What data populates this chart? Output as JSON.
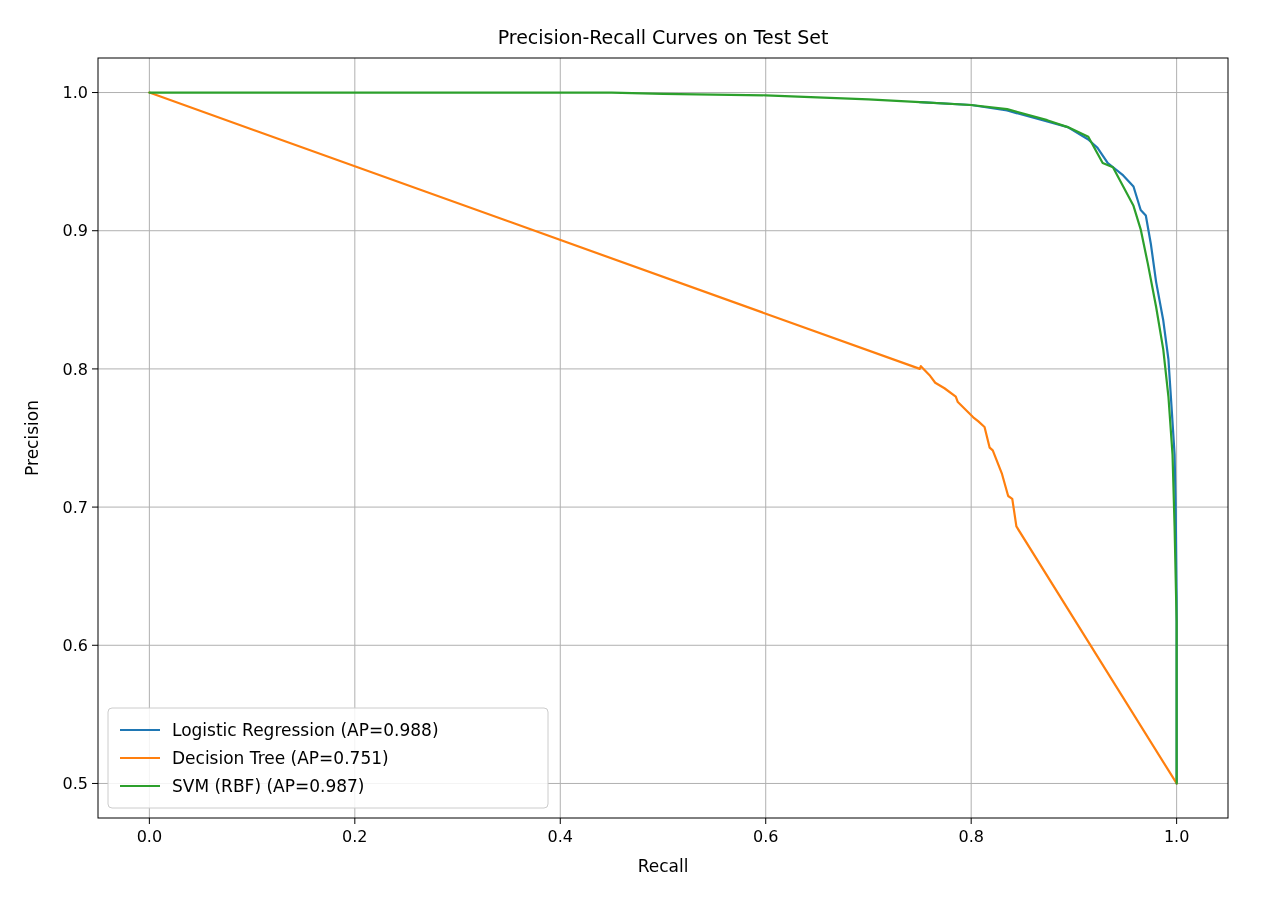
{
  "chart_data": {
    "type": "line",
    "title": "Precision-Recall Curves on Test Set",
    "xlabel": "Recall",
    "ylabel": "Precision",
    "xlim": [
      -0.05,
      1.05
    ],
    "ylim": [
      0.475,
      1.025
    ],
    "xticks": [
      {
        "value": 0,
        "label": "0.0"
      },
      0.2,
      0.4,
      0.6,
      0.8,
      {
        "value": 1,
        "label": "1.0"
      }
    ],
    "yticks": [
      0.5,
      0.6,
      0.7,
      0.8,
      0.9,
      {
        "value": 1,
        "label": "1.0"
      }
    ],
    "grid": true,
    "legend": "bottom left",
    "series": [
      {
        "name": "Logistic Regression (AP=0.988)",
        "color": "#1f77b4",
        "x": [
          0.75,
          0.8,
          0.835,
          0.874,
          0.894,
          0.914,
          0.923,
          0.933,
          0.948,
          0.958,
          0.965,
          0.97,
          0.975,
          0.98,
          0.987,
          0.992,
          0.995,
          0.998,
          0.999,
          1,
          1
        ],
        "values": [
          0.993,
          0.991,
          0.987,
          0.979,
          0.975,
          0.966,
          0.96,
          0.949,
          0.94,
          0.932,
          0.915,
          0.911,
          0.89,
          0.863,
          0.835,
          0.807,
          0.773,
          0.738,
          0.703,
          0.634,
          0.5
        ]
      },
      {
        "name": "Decision Tree (AP=0.751)",
        "color": "#ff7f0e",
        "x": [
          0,
          0.75,
          0.751,
          0.76,
          0.765,
          0.774,
          0.785,
          0.787,
          0.802,
          0.807,
          0.813,
          0.818,
          0.821,
          0.83,
          0.836,
          0.84,
          0.844,
          1
        ],
        "values": [
          1,
          0.8,
          0.802,
          0.795,
          0.79,
          0.786,
          0.78,
          0.776,
          0.765,
          0.762,
          0.758,
          0.743,
          0.741,
          0.724,
          0.708,
          0.706,
          0.686,
          0.5
        ]
      },
      {
        "name": "SVM (RBF) (AP=0.987)",
        "color": "#2ca02c",
        "x": [
          0,
          0.45,
          0.5,
          0.6,
          0.7,
          0.75,
          0.8,
          0.835,
          0.874,
          0.894,
          0.914,
          0.928,
          0.938,
          0.948,
          0.958,
          0.965,
          0.972,
          0.98,
          0.987,
          0.992,
          0.996,
          0.998,
          1,
          1
        ],
        "values": [
          1,
          1,
          0.999,
          0.998,
          0.995,
          0.993,
          0.991,
          0.988,
          0.98,
          0.975,
          0.968,
          0.949,
          0.946,
          0.932,
          0.918,
          0.901,
          0.876,
          0.845,
          0.814,
          0.78,
          0.738,
          0.686,
          0.617,
          0.5
        ]
      }
    ]
  }
}
